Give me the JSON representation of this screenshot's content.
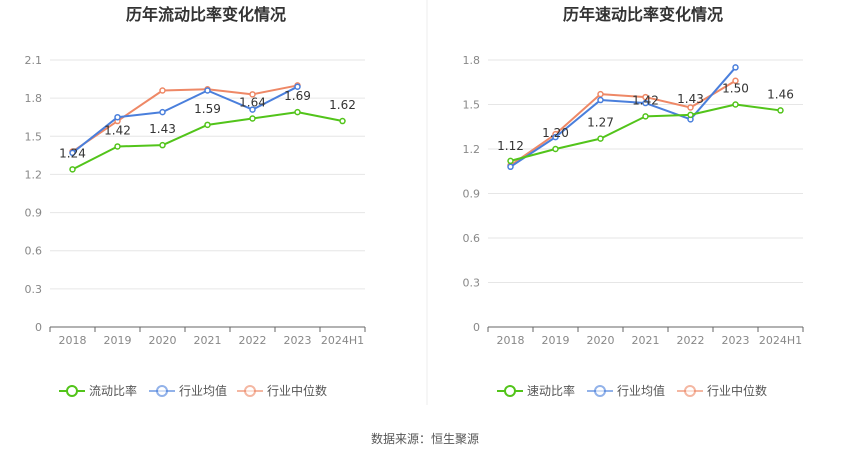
{
  "footer": {
    "source": "数据来源：恒生聚源"
  },
  "chart_data": [
    {
      "type": "line",
      "title": "历年流动比率变化情况",
      "categories": [
        "2018",
        "2019",
        "2020",
        "2021",
        "2022",
        "2023",
        "2024H1"
      ],
      "yticks": [
        "0",
        "0.3",
        "0.6",
        "0.9",
        "1.2",
        "1.5",
        "1.8",
        "2.1"
      ],
      "ylim": [
        0,
        2.1
      ],
      "grid": true,
      "legend_position": "bottom",
      "series": [
        {
          "name": "流动比率",
          "color": "#52c41a",
          "values": [
            1.24,
            1.42,
            1.43,
            1.59,
            1.64,
            1.69,
            1.62
          ],
          "labels": [
            "1.24",
            "1.42",
            "1.43",
            "1.59",
            "1.64",
            "1.69",
            "1.62"
          ]
        },
        {
          "name": "行业均值",
          "color": "#4a7fdc",
          "values": [
            1.37,
            1.65,
            1.69,
            1.86,
            1.71,
            1.89,
            null
          ]
        },
        {
          "name": "行业中位数",
          "color": "#ee8866",
          "values": [
            1.38,
            1.62,
            1.86,
            1.87,
            1.83,
            1.9,
            null
          ]
        }
      ]
    },
    {
      "type": "line",
      "title": "历年速动比率变化情况",
      "categories": [
        "2018",
        "2019",
        "2020",
        "2021",
        "2022",
        "2023",
        "2024H1"
      ],
      "yticks": [
        "0",
        "0.3",
        "0.6",
        "0.9",
        "1.2",
        "1.5",
        "1.8"
      ],
      "ylim": [
        0,
        1.8
      ],
      "grid": true,
      "legend_position": "bottom",
      "series": [
        {
          "name": "速动比率",
          "color": "#52c41a",
          "values": [
            1.12,
            1.2,
            1.27,
            1.42,
            1.43,
            1.5,
            1.46
          ],
          "labels": [
            "1.12",
            "1.20",
            "1.27",
            "1.42",
            "1.43",
            "1.50",
            "1.46"
          ]
        },
        {
          "name": "行业均值",
          "color": "#4a7fdc",
          "values": [
            1.08,
            1.28,
            1.53,
            1.51,
            1.4,
            1.75,
            null
          ]
        },
        {
          "name": "行业中位数",
          "color": "#ee8866",
          "values": [
            1.09,
            1.3,
            1.57,
            1.55,
            1.48,
            1.66,
            null
          ]
        }
      ]
    }
  ]
}
